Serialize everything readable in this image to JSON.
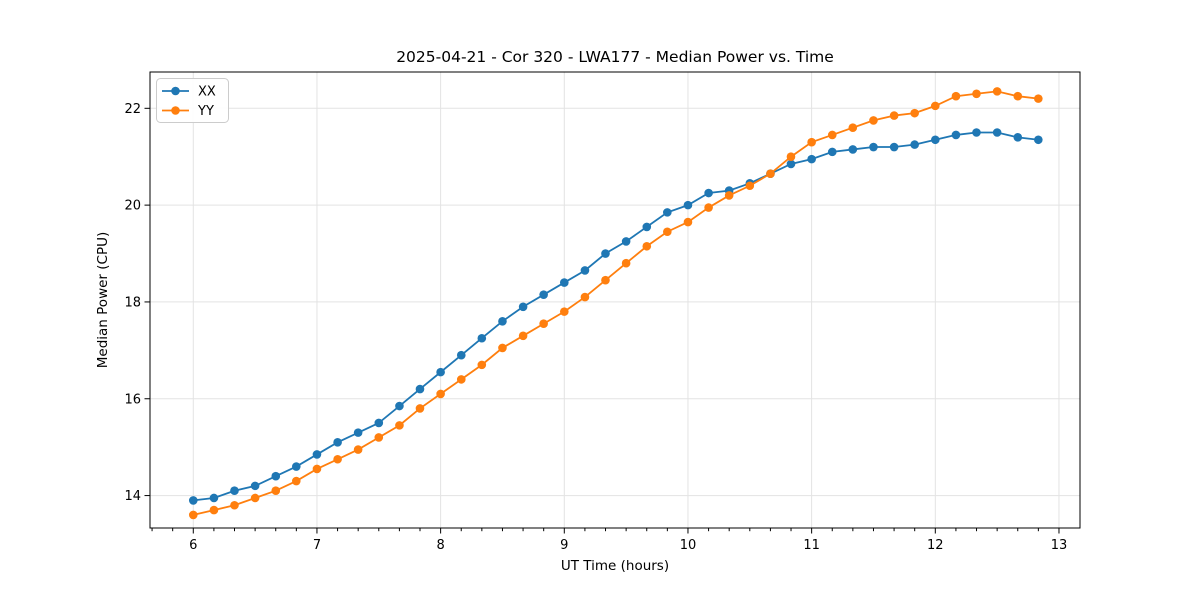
{
  "figure": {
    "background": "#ffffff",
    "text_color": "#000000",
    "grid_color": "#e3e3e3"
  },
  "chart_data": {
    "type": "line",
    "title": "2025-04-21 - Cor 320 - LWA177 - Median Power vs. Time",
    "xlabel": "UT Time (hours)",
    "ylabel": "Median Power (CPU)",
    "xlim": [
      5.65,
      13.17
    ],
    "ylim": [
      13.33,
      22.75
    ],
    "x_ticks": [
      6,
      7,
      8,
      9,
      10,
      11,
      12,
      13
    ],
    "y_ticks": [
      14,
      16,
      18,
      20,
      22
    ],
    "x_minor_divisions": 6,
    "grid": true,
    "legend_position": "upper left",
    "marker": "circle",
    "x": [
      6.0,
      6.167,
      6.333,
      6.5,
      6.667,
      6.833,
      7.0,
      7.167,
      7.333,
      7.5,
      7.667,
      7.833,
      8.0,
      8.167,
      8.333,
      8.5,
      8.667,
      8.833,
      9.0,
      9.167,
      9.333,
      9.5,
      9.667,
      9.833,
      10.0,
      10.167,
      10.333,
      10.5,
      10.667,
      10.833,
      11.0,
      11.167,
      11.333,
      11.5,
      11.667,
      11.833,
      12.0,
      12.167,
      12.333,
      12.5,
      12.667,
      12.833
    ],
    "series": [
      {
        "name": "XX",
        "color": "#1f77b4",
        "values": [
          13.9,
          13.95,
          14.1,
          14.2,
          14.4,
          14.6,
          14.85,
          15.1,
          15.3,
          15.5,
          15.85,
          16.2,
          16.55,
          16.9,
          17.25,
          17.6,
          17.9,
          18.15,
          18.4,
          18.65,
          19.0,
          19.25,
          19.55,
          19.85,
          20.0,
          20.25,
          20.3,
          20.45,
          20.65,
          20.85,
          20.95,
          21.1,
          21.15,
          21.2,
          21.2,
          21.25,
          21.35,
          21.45,
          21.5,
          21.5,
          21.4,
          21.35
        ]
      },
      {
        "name": "YY",
        "color": "#ff7f0e",
        "values": [
          13.6,
          13.7,
          13.8,
          13.95,
          14.1,
          14.3,
          14.55,
          14.75,
          14.95,
          15.2,
          15.45,
          15.8,
          16.1,
          16.4,
          16.7,
          17.05,
          17.3,
          17.55,
          17.8,
          18.1,
          18.45,
          18.8,
          19.15,
          19.45,
          19.65,
          19.95,
          20.2,
          20.4,
          20.65,
          21.0,
          21.3,
          21.45,
          21.6,
          21.75,
          21.85,
          21.9,
          22.05,
          22.25,
          22.3,
          22.35,
          22.25,
          22.2
        ]
      }
    ]
  }
}
